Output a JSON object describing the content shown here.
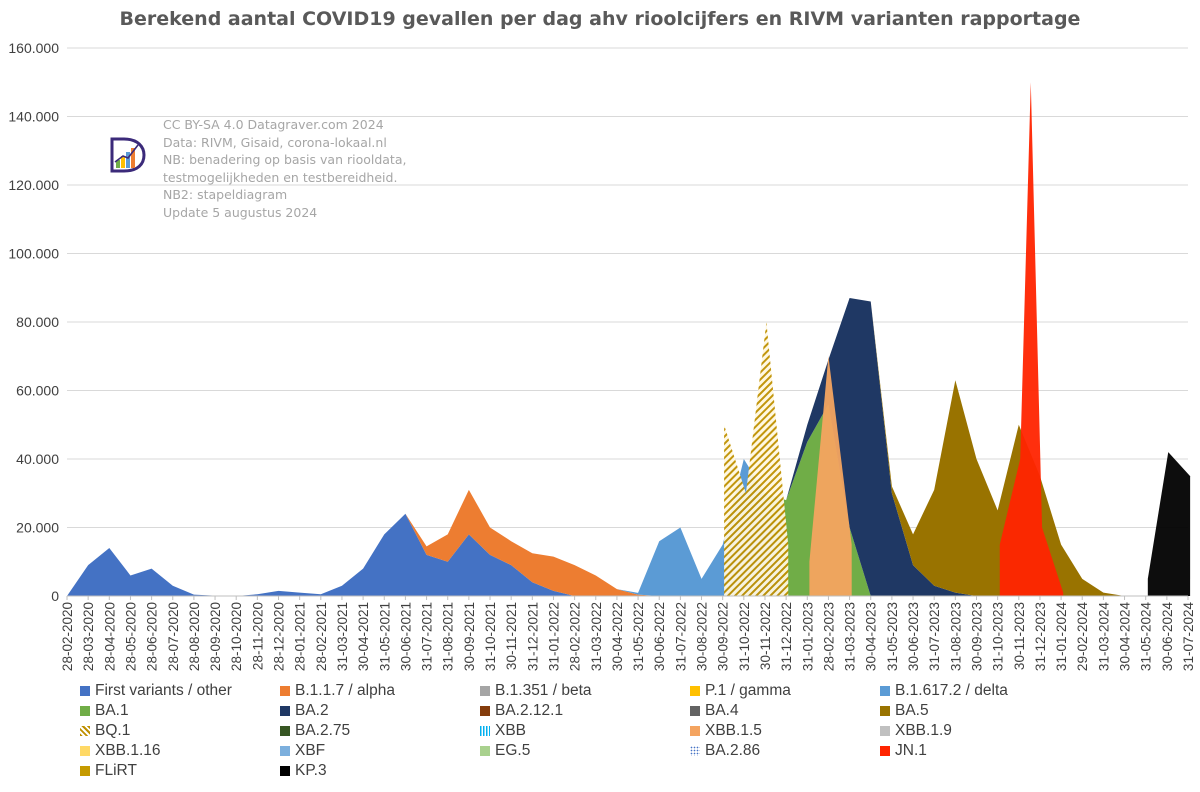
{
  "chart_data": {
    "type": "area",
    "stacked": true,
    "title": "Berekend aantal COVID19 gevallen per dag ahv rioolcijfers en RIVM varianten rapportage",
    "annotation": [
      "CC BY-SA 4.0 Datagraver.com 2024",
      "Data: RIVM, Gisaid, corona-lokaal.nl",
      "NB: benadering op basis van riooldata,",
      "testmogelijkheden en testbereidheid.",
      "NB2: stapeldiagram",
      "Update 5 augustus 2024"
    ],
    "ylim": [
      0,
      160000
    ],
    "y_ticks": [
      "0",
      "20.000",
      "40.000",
      "60.000",
      "80.000",
      "100.000",
      "120.000",
      "140.000",
      "160.000"
    ],
    "x_ticks": [
      "28-02-2020",
      "28-03-2020",
      "28-04-2020",
      "28-05-2020",
      "28-06-2020",
      "28-07-2020",
      "28-08-2020",
      "28-09-2020",
      "28-10-2020",
      "28-11-2020",
      "28-12-2020",
      "28-01-2021",
      "28-02-2021",
      "31-03-2021",
      "30-04-2021",
      "31-05-2021",
      "30-06-2021",
      "31-07-2021",
      "31-08-2021",
      "30-09-2021",
      "31-10-2021",
      "30-11-2021",
      "31-12-2021",
      "31-01-2022",
      "28-02-2022",
      "31-03-2022",
      "30-04-2022",
      "31-05-2022",
      "30-06-2022",
      "31-07-2022",
      "30-08-2022",
      "30-09-2022",
      "31-10-2022",
      "30-11-2022",
      "31-12-2022",
      "31-01-2023",
      "28-02-2023",
      "31-03-2023",
      "30-04-2023",
      "31-05-2023",
      "30-06-2023",
      "31-07-2023",
      "31-08-2023",
      "30-09-2023",
      "31-10-2023",
      "30-11-2023",
      "31-12-2023",
      "31-01-2024",
      "29-02-2024",
      "31-03-2024",
      "30-04-2024",
      "31-05-2024",
      "30-06-2024",
      "31-07-2024"
    ],
    "grid": true,
    "legend_position": "bottom",
    "series": [
      {
        "name": "First variants / other",
        "color": "#4472c4",
        "pattern": "solid",
        "values": [
          0,
          9000,
          14000,
          6000,
          8000,
          3000,
          400,
          100,
          0,
          500,
          1500,
          1000,
          500,
          3000,
          8000,
          18000,
          24000,
          12000,
          10000,
          18000,
          12000,
          9000,
          4000,
          1500,
          0,
          0,
          0,
          0,
          0,
          0,
          0,
          0,
          0,
          0,
          0,
          0,
          0,
          0,
          0,
          0,
          0,
          0,
          0,
          0,
          0,
          0,
          0,
          0,
          0,
          0,
          0,
          0,
          0,
          0
        ]
      },
      {
        "name": "B.1.1.7 / alpha",
        "color": "#ed7d31",
        "pattern": "solid",
        "values": [
          0,
          0,
          0,
          0,
          0,
          0,
          0,
          0,
          0,
          0,
          0,
          0,
          0,
          0,
          0,
          0,
          0,
          2500,
          8000,
          13000,
          8000,
          7000,
          8500,
          10000,
          9000,
          6000,
          2000,
          400,
          0,
          0,
          0,
          0,
          0,
          0,
          0,
          0,
          0,
          0,
          0,
          0,
          0,
          0,
          0,
          0,
          0,
          0,
          0,
          0,
          0,
          0,
          0,
          0,
          0,
          0
        ]
      },
      {
        "name": "B.1.351 / beta",
        "color": "#a5a5a5",
        "pattern": "solid",
        "values": []
      },
      {
        "name": "P.1 / gamma",
        "color": "#ffc000",
        "pattern": "solid",
        "values": []
      },
      {
        "name": "B.1.617.2 / delta",
        "color": "#5b9bd5",
        "pattern": "solid",
        "values": [
          0,
          0,
          0,
          0,
          0,
          0,
          0,
          0,
          0,
          0,
          0,
          0,
          0,
          0,
          0,
          0,
          0,
          0,
          0,
          0,
          0,
          0,
          0,
          0,
          0,
          0,
          0,
          500,
          16000,
          20000,
          5000,
          15000,
          40000,
          30000,
          0,
          0,
          0,
          0,
          0,
          0,
          0,
          0,
          0,
          0,
          0,
          0,
          0,
          0,
          0,
          0,
          0,
          0,
          0,
          0
        ]
      },
      {
        "name": "BA.1",
        "color": "#70ad47",
        "pattern": "solid",
        "values": [
          0,
          0,
          0,
          0,
          0,
          0,
          0,
          0,
          0,
          0,
          0,
          0,
          0,
          0,
          0,
          0,
          0,
          0,
          0,
          0,
          0,
          0,
          0,
          0,
          0,
          0,
          0,
          0,
          0,
          0,
          0,
          0,
          0,
          0,
          28000,
          45000,
          56000,
          20000,
          0,
          0,
          0,
          0,
          0,
          0,
          0,
          0,
          0,
          0,
          0,
          0,
          0,
          0,
          0,
          0
        ]
      },
      {
        "name": "BA.2",
        "color": "#1f3864",
        "pattern": "solid",
        "values": [
          0,
          0,
          0,
          0,
          0,
          0,
          0,
          0,
          0,
          0,
          0,
          0,
          0,
          0,
          0,
          0,
          0,
          0,
          0,
          0,
          0,
          0,
          0,
          0,
          0,
          0,
          0,
          0,
          0,
          0,
          0,
          0,
          0,
          0,
          0,
          5000,
          13000,
          67000,
          86000,
          30000,
          9000,
          3000,
          1000,
          0,
          0,
          0,
          0,
          0,
          0,
          0,
          0,
          0,
          0,
          0
        ]
      },
      {
        "name": "BA.2.12.1",
        "color": "#843c0c",
        "pattern": "solid",
        "values": []
      },
      {
        "name": "BA.4",
        "color": "#636363",
        "pattern": "solid",
        "values": []
      },
      {
        "name": "BA.5",
        "color": "#997300",
        "pattern": "solid",
        "values": [
          0,
          0,
          0,
          0,
          0,
          0,
          0,
          0,
          0,
          0,
          0,
          0,
          0,
          0,
          0,
          0,
          0,
          0,
          0,
          0,
          0,
          0,
          0,
          0,
          0,
          0,
          0,
          0,
          0,
          0,
          0,
          0,
          0,
          0,
          0,
          0,
          0,
          0,
          0,
          2000,
          9000,
          28000,
          62000,
          40000,
          25000,
          50000,
          35000,
          15000,
          5000,
          1000,
          0,
          0,
          0,
          0
        ]
      },
      {
        "name": "BQ.1",
        "color": "#bf9000",
        "pattern": "hatch",
        "values": []
      },
      {
        "name": "BA.2.75",
        "color": "#375623",
        "pattern": "solid",
        "values": []
      },
      {
        "name": "XBB",
        "color": "#00b0f0",
        "pattern": "stripes",
        "values": []
      },
      {
        "name": "XBB.1.5",
        "color": "#f4a460",
        "pattern": "solid",
        "values": []
      },
      {
        "name": "XBB.1.9",
        "color": "#c0c0c0",
        "pattern": "solid",
        "values": []
      },
      {
        "name": "XBB.1.16",
        "color": "#ffd966",
        "pattern": "solid",
        "values": []
      },
      {
        "name": "XBF",
        "color": "#7cafdd",
        "pattern": "solid",
        "values": []
      },
      {
        "name": "EG.5",
        "color": "#a9d18e",
        "pattern": "solid",
        "values": []
      },
      {
        "name": "BA.2.86",
        "color": "#4472c4",
        "pattern": "dots",
        "values": []
      },
      {
        "name": "JN.1",
        "color": "#ff2400",
        "pattern": "solid",
        "values": []
      },
      {
        "name": "FLiRT",
        "color": "#c59a00",
        "pattern": "solid",
        "values": []
      },
      {
        "name": "KP.3",
        "color": "#000000",
        "pattern": "solid",
        "values": []
      }
    ]
  },
  "peaks": [
    {
      "label": "JN.1",
      "dates": [
        "31-10-2023",
        "30-11-2023",
        "15-12-2023",
        "31-12-2023",
        "31-01-2024"
      ],
      "values": [
        15000,
        40000,
        150000,
        20000,
        1000
      ]
    },
    {
      "label": "XBB.1.5",
      "dates": [
        "31-01-2023",
        "28-02-2023",
        "31-03-2023"
      ],
      "values": [
        10000,
        70000,
        15000
      ]
    },
    {
      "label": "BQ.1",
      "dates": [
        "30-09-2022",
        "31-10-2022",
        "30-11-2022",
        "31-12-2022"
      ],
      "values": [
        50000,
        30000,
        80000,
        15000
      ]
    },
    {
      "label": "KP.3",
      "dates": [
        "31-05-2024",
        "30-06-2024",
        "31-07-2024"
      ],
      "values": [
        5000,
        42000,
        35000
      ]
    }
  ]
}
